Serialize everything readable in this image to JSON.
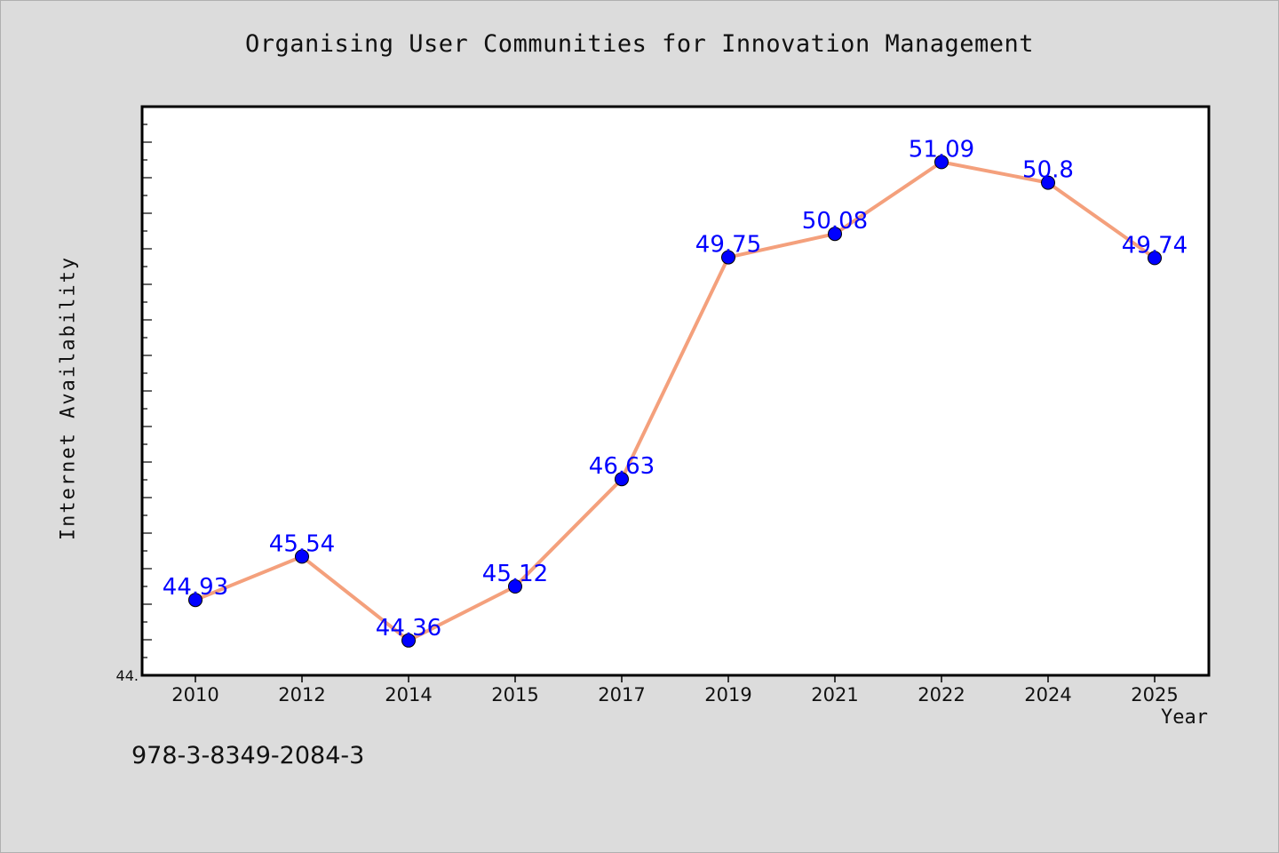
{
  "chart_data": {
    "type": "line",
    "title": "Organising User Communities for Innovation Management",
    "xlabel": "Year",
    "ylabel": "Internet Availability",
    "x": [
      "2010",
      "2012",
      "2014",
      "2015",
      "2017",
      "2019",
      "2021",
      "2022",
      "2024",
      "2025"
    ],
    "series": [
      {
        "values": [
          44.93,
          45.54,
          44.36,
          45.12,
          46.63,
          49.75,
          50.08,
          51.09,
          50.8,
          49.74
        ],
        "labels": [
          "44.93",
          "45.54",
          "44.36",
          "45.12",
          "46.63",
          "49.75",
          "50.08",
          "51.09",
          "50.8",
          "49.74"
        ],
        "line_color": "#f4a07c",
        "marker_color": "#0000ff",
        "label_color": "#0000ff"
      }
    ],
    "ylim": [
      43.87,
      51.87
    ],
    "y_min_tick_label": "44.",
    "grid": false,
    "legend": "none"
  },
  "footnote": "978-3-8349-2084-3"
}
